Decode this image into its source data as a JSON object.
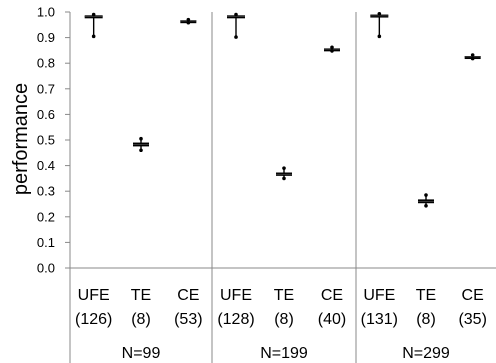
{
  "chart_data": {
    "type": "box",
    "ylabel": "performance",
    "ylim": [
      0.0,
      1.0
    ],
    "ytick_step": 0.1,
    "yticks": [
      "0.0",
      "0.1",
      "0.2",
      "0.3",
      "0.4",
      "0.5",
      "0.6",
      "0.7",
      "0.8",
      "0.9",
      "1.0"
    ],
    "groups": [
      {
        "label": "N=99",
        "categories": [
          {
            "name": "UFE",
            "count": "(126)",
            "median": 0.982,
            "q1": 0.977,
            "q3": 0.987,
            "min": 0.905,
            "max": 0.99
          },
          {
            "name": "TE",
            "count": "(8)",
            "median": 0.482,
            "q1": 0.475,
            "q3": 0.49,
            "min": 0.46,
            "max": 0.505
          },
          {
            "name": "CE",
            "count": "(53)",
            "median": 0.965,
            "q1": 0.962,
            "q3": 0.968,
            "min": 0.958,
            "max": 0.97
          }
        ]
      },
      {
        "label": "N=199",
        "categories": [
          {
            "name": "UFE",
            "count": "(128)",
            "median": 0.982,
            "q1": 0.977,
            "q3": 0.987,
            "min": 0.902,
            "max": 0.99
          },
          {
            "name": "TE",
            "count": "(8)",
            "median": 0.366,
            "q1": 0.36,
            "q3": 0.373,
            "min": 0.35,
            "max": 0.39
          },
          {
            "name": "CE",
            "count": "(40)",
            "median": 0.855,
            "q1": 0.852,
            "q3": 0.858,
            "min": 0.848,
            "max": 0.862
          }
        ]
      },
      {
        "label": "N=299",
        "categories": [
          {
            "name": "UFE",
            "count": "(131)",
            "median": 0.985,
            "q1": 0.98,
            "q3": 0.99,
            "min": 0.905,
            "max": 0.993
          },
          {
            "name": "TE",
            "count": "(8)",
            "median": 0.26,
            "q1": 0.253,
            "q3": 0.268,
            "min": 0.243,
            "max": 0.285
          },
          {
            "name": "CE",
            "count": "(35)",
            "median": 0.825,
            "q1": 0.822,
            "q3": 0.828,
            "min": 0.818,
            "max": 0.832
          }
        ]
      }
    ]
  }
}
